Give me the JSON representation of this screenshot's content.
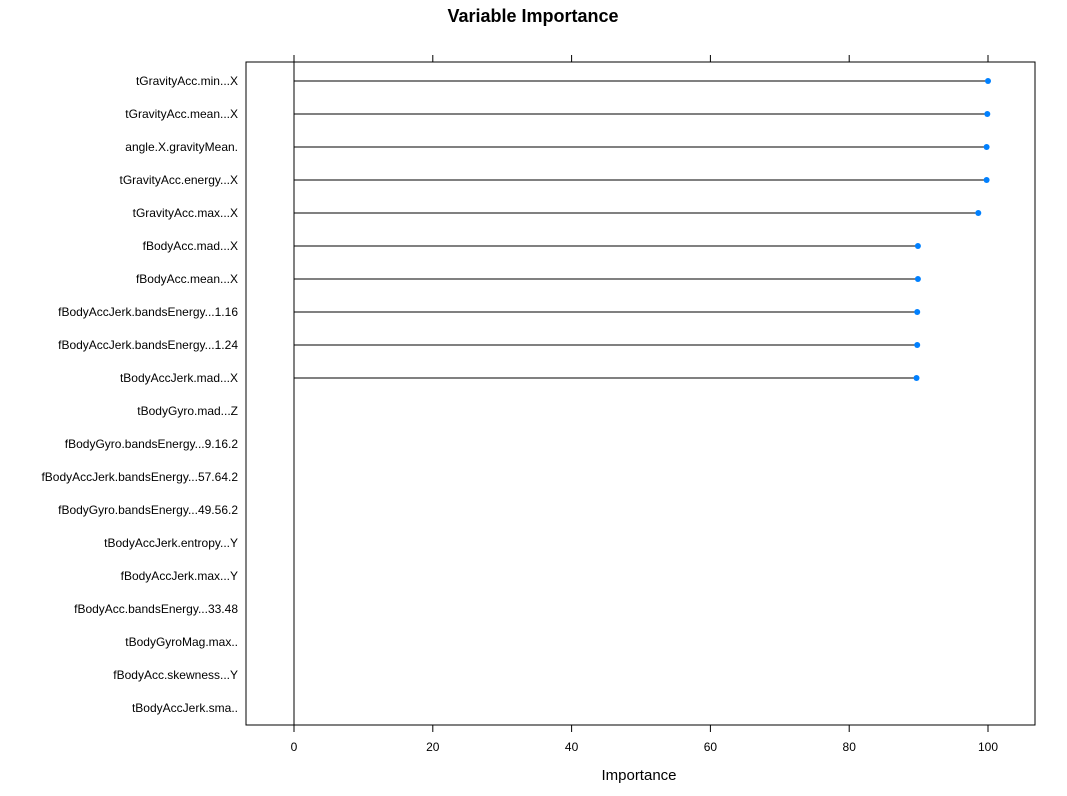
{
  "chart_data": {
    "type": "dot",
    "title": "Variable Importance",
    "xlabel": "Importance",
    "ylabel": "",
    "xlim": [
      -7,
      107
    ],
    "xticks": [
      0,
      20,
      40,
      60,
      80,
      100
    ],
    "xtick_labels": [
      "0",
      "20",
      "40",
      "60",
      "80",
      "100"
    ],
    "grid": false,
    "legend": "none",
    "point_color": "#0080ff",
    "line_color": "#000000",
    "categories": [
      "tGravityAcc.min...X",
      "tGravityAcc.mean...X",
      "angle.X.gravityMean.",
      "tGravityAcc.energy...X",
      "tGravityAcc.max...X",
      "fBodyAcc.mad...X",
      "fBodyAcc.mean...X",
      "fBodyAccJerk.bandsEnergy...1.16",
      "fBodyAccJerk.bandsEnergy...1.24",
      "tBodyAccJerk.mad...X",
      "tBodyGyro.mad...Z",
      "fBodyGyro.bandsEnergy...9.16.2",
      "fBodyAccJerk.bandsEnergy...57.64.2",
      "fBodyGyro.bandsEnergy...49.56.2",
      "tBodyAccJerk.entropy...Y",
      "fBodyAccJerk.max...Y",
      "fBodyAcc.bandsEnergy...33.48",
      "tBodyGyroMag.max..",
      "fBodyAcc.skewness...Y",
      "tBodyAccJerk.sma.."
    ],
    "values": [
      100,
      99.9,
      99.8,
      99.8,
      98.6,
      89.9,
      89.9,
      89.8,
      89.8,
      89.7,
      0,
      0,
      0,
      0,
      0,
      0,
      0,
      0,
      0,
      0
    ]
  }
}
